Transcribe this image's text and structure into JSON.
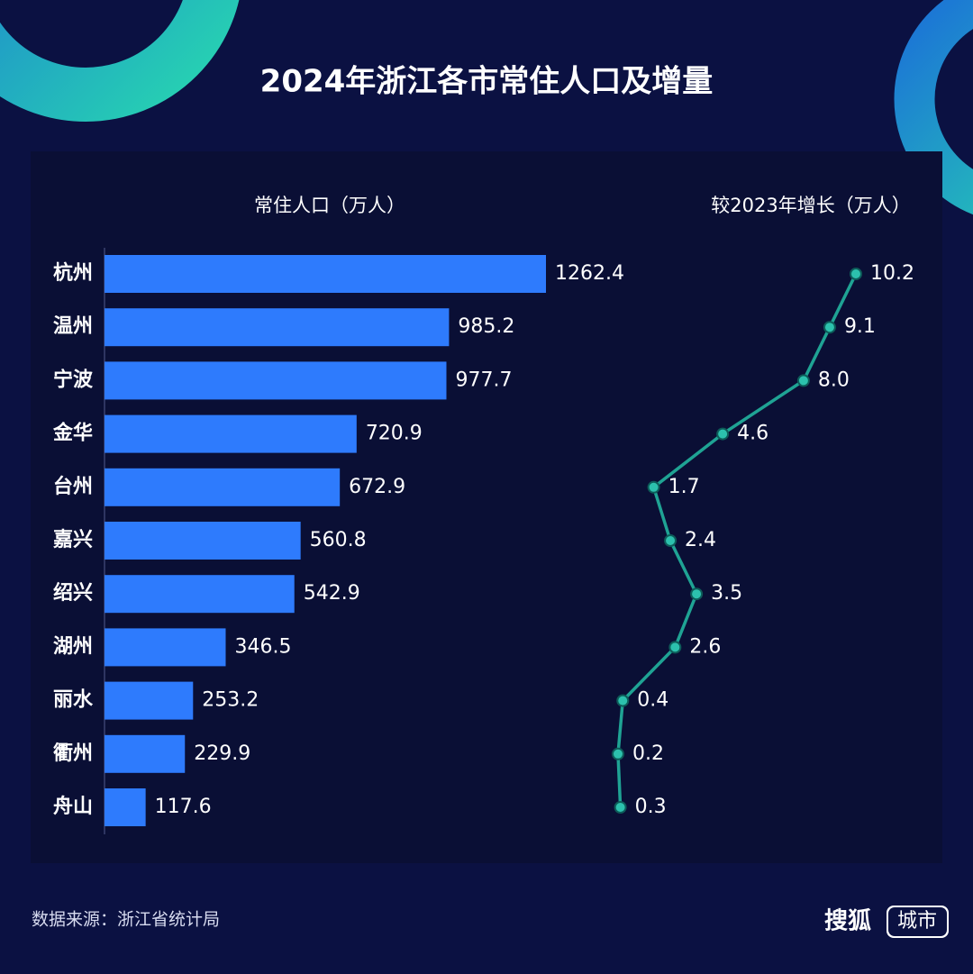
{
  "title": "2024年浙江各市常住人口及增量",
  "source": "数据来源：浙江省统计局",
  "brand": {
    "name": "搜狐",
    "tag": "城市"
  },
  "chart_data": [
    {
      "type": "bar",
      "orientation": "horizontal",
      "title": "常住人口（万人）",
      "categories": [
        "杭州",
        "温州",
        "宁波",
        "金华",
        "台州",
        "嘉兴",
        "绍兴",
        "湖州",
        "丽水",
        "衢州",
        "舟山"
      ],
      "values": [
        1262.4,
        985.2,
        977.7,
        720.9,
        672.9,
        560.8,
        542.9,
        346.5,
        253.2,
        229.9,
        117.6
      ],
      "color": "#2e7bfd"
    },
    {
      "type": "line",
      "orientation": "vertical",
      "title": "较2023年增长（万人）",
      "values": [
        10.2,
        9.1,
        8.0,
        4.6,
        1.7,
        2.4,
        3.5,
        2.6,
        0.4,
        0.2,
        0.3
      ],
      "value_labels": [
        "10.2",
        "9.1",
        "8.0",
        "4.6",
        "1.7",
        "2.4",
        "3.5",
        "2.6",
        "0.4",
        "0.2",
        "0.3"
      ],
      "color": "#1fa394"
    }
  ]
}
